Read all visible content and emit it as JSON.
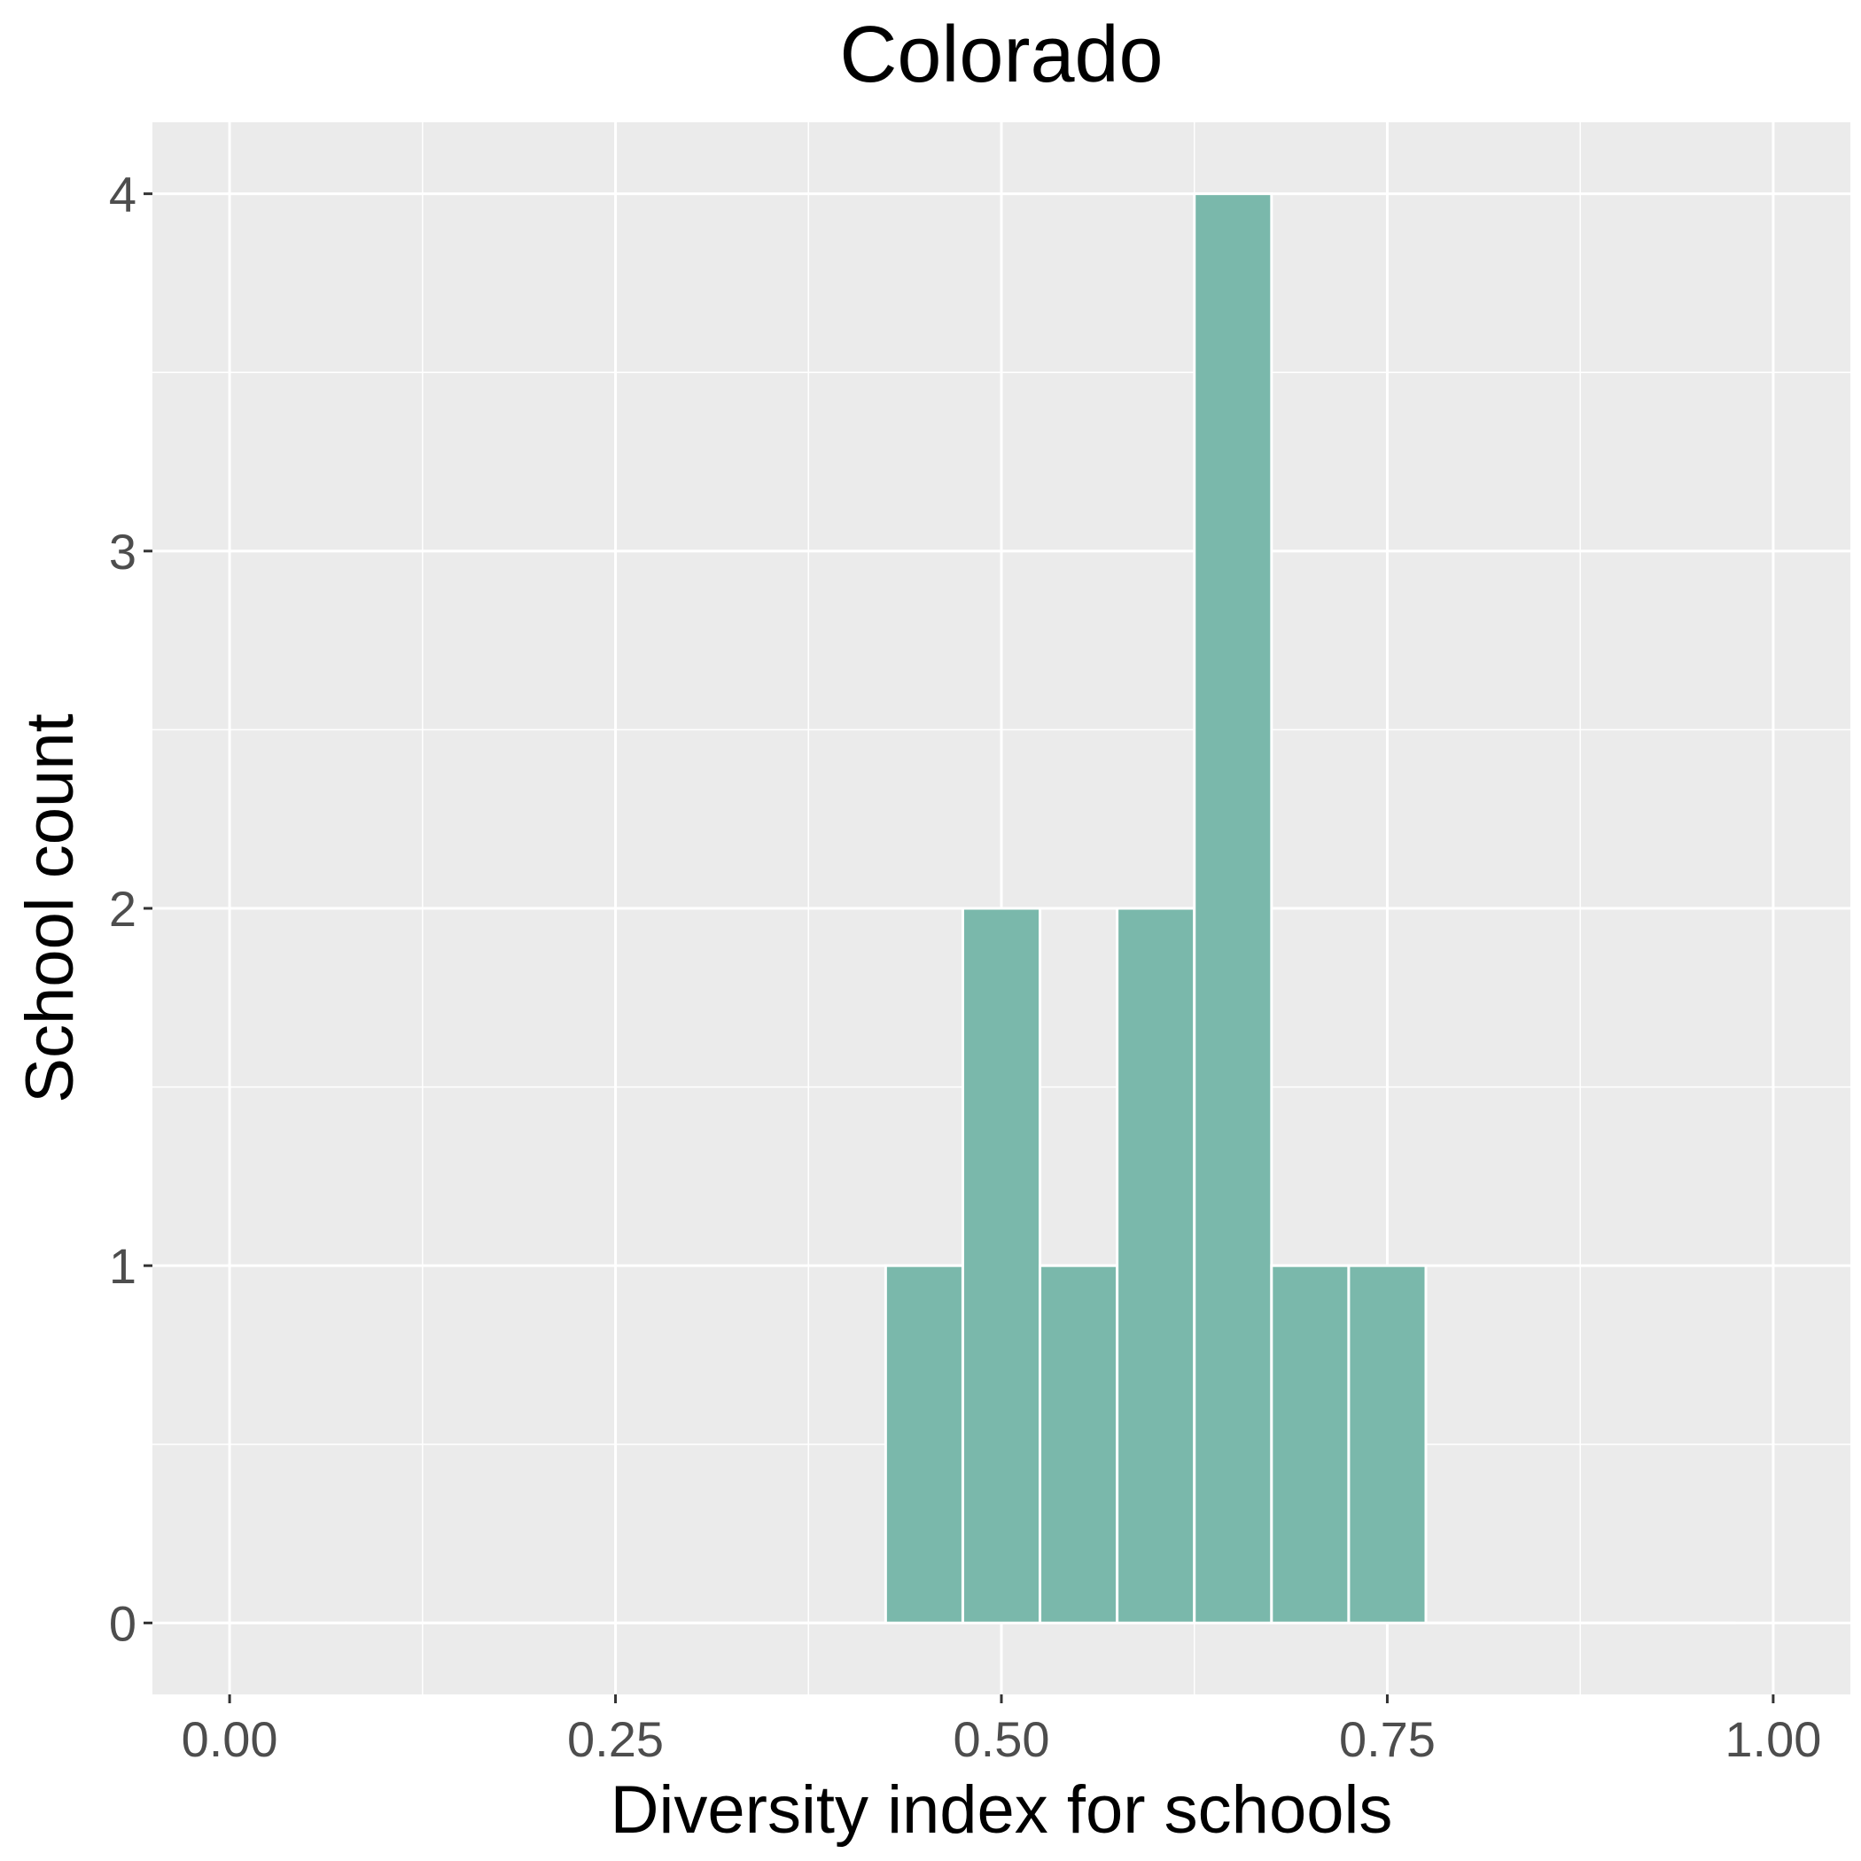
{
  "chart_data": {
    "type": "bar",
    "title": "Colorado",
    "xlabel": "Diversity index for schools",
    "ylabel": "School count",
    "xlim": [
      -0.05,
      1.05
    ],
    "ylim": [
      -0.2,
      4.2
    ],
    "x_ticks": [
      0,
      0.25,
      0.5,
      0.75,
      1.0
    ],
    "x_tick_labels": [
      "0.00",
      "0.25",
      "0.50",
      "0.75",
      "1.00"
    ],
    "y_ticks": [
      0,
      1,
      2,
      3,
      4
    ],
    "y_tick_labels": [
      "0",
      "1",
      "2",
      "3",
      "4"
    ],
    "bin_width": 0.05,
    "bins": [
      {
        "start": -0.025,
        "end": 0.025,
        "count": 0
      },
      {
        "start": 0.025,
        "end": 0.075,
        "count": 0
      },
      {
        "start": 0.075,
        "end": 0.125,
        "count": 0
      },
      {
        "start": 0.125,
        "end": 0.175,
        "count": 0
      },
      {
        "start": 0.175,
        "end": 0.225,
        "count": 0
      },
      {
        "start": 0.225,
        "end": 0.275,
        "count": 0
      },
      {
        "start": 0.275,
        "end": 0.325,
        "count": 0
      },
      {
        "start": 0.325,
        "end": 0.375,
        "count": 0
      },
      {
        "start": 0.375,
        "end": 0.425,
        "count": 0
      },
      {
        "start": 0.425,
        "end": 0.475,
        "count": 1
      },
      {
        "start": 0.475,
        "end": 0.525,
        "count": 2
      },
      {
        "start": 0.525,
        "end": 0.575,
        "count": 1
      },
      {
        "start": 0.575,
        "end": 0.625,
        "count": 2
      },
      {
        "start": 0.625,
        "end": 0.675,
        "count": 4
      },
      {
        "start": 0.675,
        "end": 0.725,
        "count": 1
      },
      {
        "start": 0.725,
        "end": 0.775,
        "count": 1
      },
      {
        "start": 0.775,
        "end": 0.825,
        "count": 0
      },
      {
        "start": 0.825,
        "end": 0.875,
        "count": 0
      },
      {
        "start": 0.875,
        "end": 0.925,
        "count": 0
      },
      {
        "start": 0.925,
        "end": 0.975,
        "count": 0
      }
    ],
    "grid": true,
    "legend": "none",
    "colors": {
      "bar_fill": "#7ab8ab",
      "panel_background": "#ebebeb",
      "grid_line": "#ffffff"
    }
  }
}
